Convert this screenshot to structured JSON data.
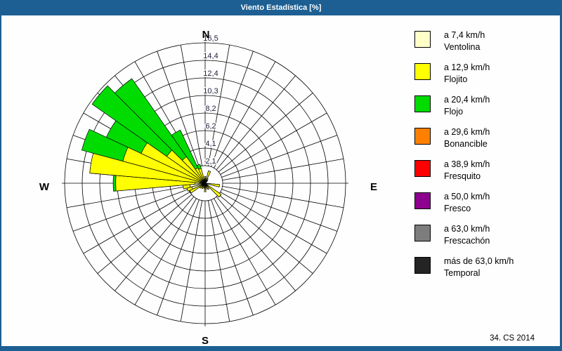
{
  "window": {
    "title": "Viento Estadística [%]",
    "footer_note": "34. CS 2014"
  },
  "compass": {
    "n": "N",
    "e": "E",
    "s": "S",
    "w": "W"
  },
  "legend": {
    "items": [
      {
        "speed": "a 7,4 km/h",
        "name": "Ventolina",
        "color": "#FFFFC8"
      },
      {
        "speed": "a 12,9 km/h",
        "name": "Flojito",
        "color": "#FFFF00"
      },
      {
        "speed": "a 20,4 km/h",
        "name": "Flojo",
        "color": "#00DC00"
      },
      {
        "speed": "a 29,6 km/h",
        "name": "Bonancible",
        "color": "#FF8000"
      },
      {
        "speed": "a 38,9 km/h",
        "name": "Fresquito",
        "color": "#FF0000"
      },
      {
        "speed": "a 50,0 km/h",
        "name": "Fresco",
        "color": "#8E008E"
      },
      {
        "speed": "a 63,0 km/h",
        "name": "Frescachón",
        "color": "#7D7D7D"
      },
      {
        "speed": "más de 63,0 km/h",
        "name": "Temporal",
        "color": "#242424"
      }
    ]
  },
  "chart_data": {
    "type": "windrose",
    "title": "Viento Estadística [%]",
    "units": "%",
    "sector_width_deg": 10,
    "n_spokes": 36,
    "rmax": 16.5,
    "ring_values": [
      2.1,
      4.1,
      6.2,
      8.2,
      10.3,
      12.4,
      14.4,
      16.5
    ],
    "ring_labels": [
      "2,1",
      "4,1",
      "6,2",
      "8,2",
      "10,3",
      "12,4",
      "14,4",
      "16,5"
    ],
    "class_order_note": "cumulative ends per petal: [ventolina, flojito, flojo] in %",
    "petals": [
      {
        "dir": 0,
        "cum": [
          0.3,
          0.8,
          0.8
        ]
      },
      {
        "dir": 10,
        "cum": [
          0.2,
          0.5,
          0.5
        ]
      },
      {
        "dir": 20,
        "cum": [
          0.3,
          1.5,
          1.5
        ]
      },
      {
        "dir": 30,
        "cum": [
          0.2,
          0.6,
          0.6
        ]
      },
      {
        "dir": 40,
        "cum": [
          0.1,
          0.4,
          0.4
        ]
      },
      {
        "dir": 100,
        "cum": [
          0.3,
          1.7,
          1.7
        ]
      },
      {
        "dir": 130,
        "cum": [
          0.2,
          2.3,
          2.3
        ]
      },
      {
        "dir": 150,
        "cum": [
          0.2,
          0.8,
          0.8
        ]
      },
      {
        "dir": 170,
        "cum": [
          0.2,
          0.7,
          0.7
        ]
      },
      {
        "dir": 180,
        "cum": [
          0.3,
          1.0,
          1.0
        ]
      },
      {
        "dir": 190,
        "cum": [
          0.2,
          0.6,
          0.6
        ]
      },
      {
        "dir": 210,
        "cum": [
          0.2,
          0.7,
          0.7
        ]
      },
      {
        "dir": 230,
        "cum": [
          0.3,
          0.8,
          0.8
        ]
      },
      {
        "dir": 240,
        "cum": [
          0.5,
          2.0,
          2.0
        ]
      },
      {
        "dir": 250,
        "cum": [
          1.6,
          2.2,
          2.2
        ]
      },
      {
        "dir": 260,
        "cum": [
          1.8,
          2.6,
          2.6
        ]
      },
      {
        "dir": 270,
        "cum": [
          1.2,
          10.5,
          10.8
        ]
      },
      {
        "dir": 280,
        "cum": [
          0.6,
          13.6,
          13.6
        ]
      },
      {
        "dir": 290,
        "cum": [
          0.6,
          10.0,
          15.0
        ]
      },
      {
        "dir": 300,
        "cum": [
          0.5,
          8.3,
          12.8
        ]
      },
      {
        "dir": 310,
        "cum": [
          0.5,
          5.5,
          16.2
        ]
      },
      {
        "dir": 320,
        "cum": [
          0.5,
          3.8,
          15.0
        ]
      },
      {
        "dir": 330,
        "cum": [
          0.4,
          2.0,
          6.9
        ]
      },
      {
        "dir": 340,
        "cum": [
          0.3,
          1.8,
          2.3
        ]
      },
      {
        "dir": 350,
        "cum": [
          0.2,
          0.5,
          0.5
        ]
      }
    ]
  }
}
